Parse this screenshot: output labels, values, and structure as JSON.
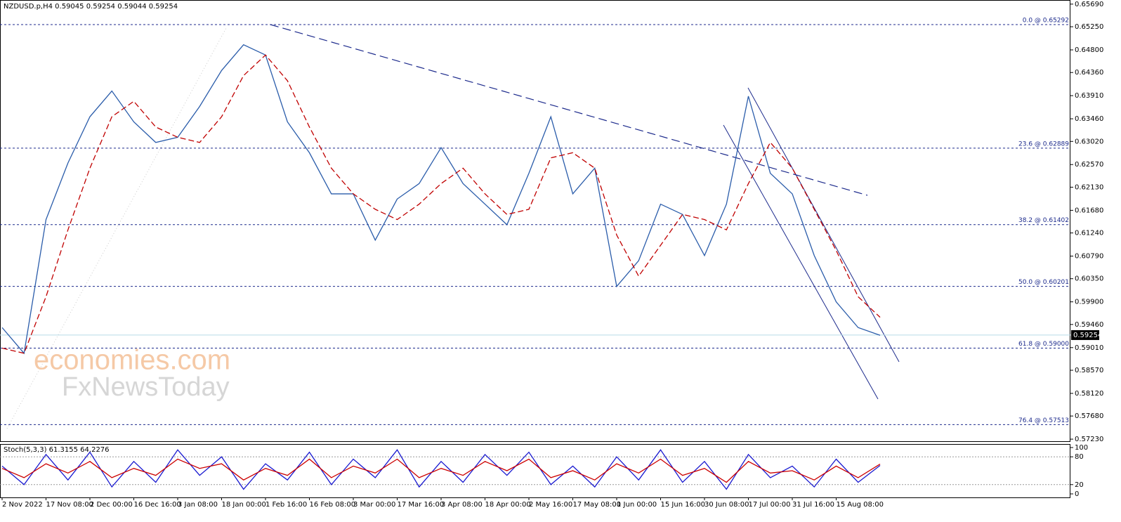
{
  "chart_data": [
    {
      "type": "line",
      "title": "NZDUSD.p,H4  0.59045 0.59254 0.59044 0.59254",
      "categories": [
        "2 Nov 2022",
        null,
        "17 Nov 08:00",
        null,
        "2 Dec 00:00",
        null,
        "16 Dec 16:00",
        null,
        "3 Jan 08:00",
        null,
        "18 Jan 00:00",
        null,
        "1 Feb 16:00",
        null,
        "16 Feb 08:00",
        null,
        "3 Mar 00:00",
        null,
        "17 Mar 16:00",
        null,
        "3 Apr 08:00",
        null,
        "18 Apr 00:00",
        null,
        "2 May 16:00",
        null,
        "17 May 08:00",
        null,
        "1 Jun 00:00",
        null,
        "15 Jun 16:00",
        null,
        "30 Jun 08:00",
        null,
        "17 Jul 00:00",
        null,
        "31 Jul 16:00",
        null,
        "15 Aug 08:00",
        null,
        null
      ],
      "series": [
        {
          "color": "#2a5caa",
          "values": [
            0.594,
            0.589,
            0.615,
            0.626,
            0.635,
            0.64,
            0.634,
            0.63,
            0.631,
            0.637,
            0.644,
            0.649,
            0.647,
            0.634,
            0.628,
            0.62,
            0.62,
            0.611,
            0.619,
            0.622,
            0.629,
            0.622,
            0.618,
            0.614,
            0.624,
            0.635,
            0.62,
            0.625,
            0.602,
            0.607,
            0.618,
            0.616,
            0.608,
            0.618,
            0.639,
            0.624,
            0.62,
            0.608,
            0.599,
            0.594,
            0.5925
          ]
        },
        {
          "color": "#c00000",
          "dashed": true,
          "values": [
            0.59,
            0.589,
            0.6,
            0.613,
            0.625,
            0.635,
            0.638,
            0.633,
            0.631,
            0.63,
            0.635,
            0.643,
            0.647,
            0.642,
            0.633,
            0.625,
            0.62,
            0.617,
            0.615,
            0.618,
            0.622,
            0.625,
            0.62,
            0.616,
            0.617,
            0.627,
            0.628,
            0.625,
            0.612,
            0.604,
            0.61,
            0.616,
            0.615,
            0.613,
            0.622,
            0.63,
            0.625,
            0.617,
            0.609,
            0.6,
            0.596
          ]
        }
      ],
      "ylim": [
        0.5719,
        0.6577
      ],
      "yticks": [
        {
          "value": 0.6569,
          "label": "0.65690"
        },
        {
          "value": 0.6525,
          "label": "0.65250"
        },
        {
          "value": 0.648,
          "label": "0.64800"
        },
        {
          "value": 0.6436,
          "label": "0.64360"
        },
        {
          "value": 0.6391,
          "label": "0.63910"
        },
        {
          "value": 0.6346,
          "label": "0.63460"
        },
        {
          "value": 0.6302,
          "label": "0.63020"
        },
        {
          "value": 0.6257,
          "label": "0.62570"
        },
        {
          "value": 0.6213,
          "label": "0.62130"
        },
        {
          "value": 0.6168,
          "label": "0.61680"
        },
        {
          "value": 0.6124,
          "label": "0.61240"
        },
        {
          "value": 0.6079,
          "label": "0.60790"
        },
        {
          "value": 0.6035,
          "label": "0.60350"
        },
        {
          "value": 0.599,
          "label": "0.59900"
        },
        {
          "value": 0.5946,
          "label": "0.59460"
        },
        {
          "value": 0.5901,
          "label": "0.59010"
        },
        {
          "value": 0.5857,
          "label": "0.58570"
        },
        {
          "value": 0.5812,
          "label": "0.58120"
        },
        {
          "value": 0.5768,
          "label": "0.57680"
        },
        {
          "value": 0.5723,
          "label": "0.57230"
        }
      ],
      "fib_levels": [
        {
          "value": 0.65292,
          "label": "0.0 @ 0.65292"
        },
        {
          "value": 0.62889,
          "label": "23.6 @ 0.62889"
        },
        {
          "value": 0.61402,
          "label": "38.2 @ 0.61402"
        },
        {
          "value": 0.60201,
          "label": "50.0 @ 0.60201"
        },
        {
          "value": 0.59,
          "label": "61.8 @ 0.59000"
        },
        {
          "value": 0.57513,
          "label": "76.4 @ 0.57513"
        }
      ],
      "current_price": 0.59254,
      "watermark": [
        "economies.com",
        "FxNewsToday"
      ]
    },
    {
      "type": "line",
      "title": "Stoch(5,3,3) 61.3155 64.2276",
      "series": [
        {
          "color": "#1a1ad0",
          "values": [
            60,
            20,
            85,
            30,
            90,
            15,
            70,
            25,
            95,
            40,
            80,
            10,
            65,
            30,
            90,
            20,
            75,
            35,
            95,
            15,
            70,
            25,
            85,
            40,
            90,
            20,
            60,
            15,
            80,
            30,
            95,
            25,
            70,
            10,
            85,
            35,
            60,
            15,
            75,
            25,
            61.3155
          ]
        },
        {
          "color": "#cc0000",
          "values": [
            55,
            35,
            65,
            45,
            70,
            35,
            55,
            40,
            75,
            55,
            65,
            30,
            55,
            40,
            75,
            35,
            60,
            45,
            75,
            35,
            55,
            40,
            70,
            50,
            75,
            35,
            50,
            30,
            65,
            45,
            75,
            40,
            55,
            25,
            70,
            45,
            50,
            30,
            60,
            35,
            64.2276
          ]
        }
      ],
      "ylim": [
        -7.6,
        107.6
      ],
      "yticks": [
        0,
        20,
        80,
        100
      ]
    }
  ]
}
